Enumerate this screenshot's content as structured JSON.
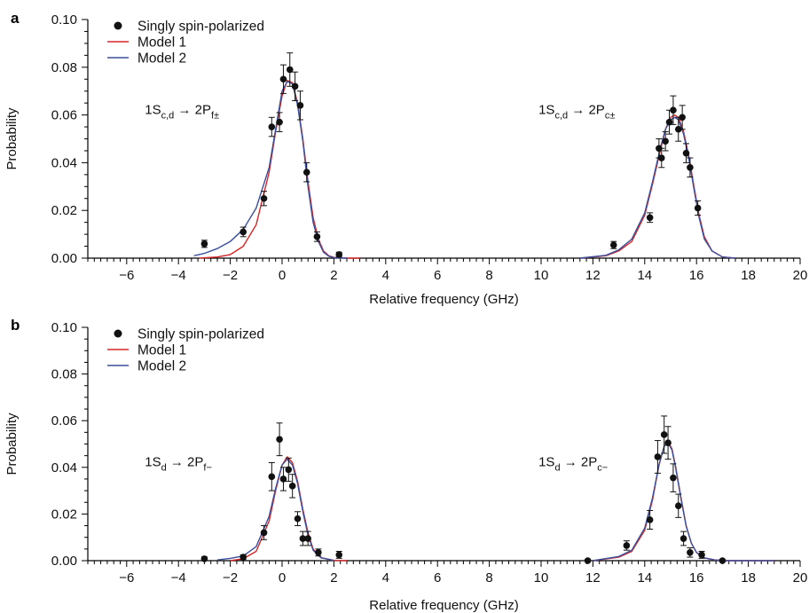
{
  "colors": {
    "model1": "#d62728",
    "model2": "#3b4f9c",
    "data": "#111111",
    "axis": "#000000"
  },
  "chart_data": [
    {
      "type": "scatter",
      "panel_label": "a",
      "xlabel": "Relative frequency (GHz)",
      "ylabel": "Probability",
      "xlim": [
        -7.5,
        20
      ],
      "ylim": [
        0,
        0.1
      ],
      "x_ticks": [
        -6,
        -4,
        -2,
        0,
        2,
        4,
        6,
        8,
        10,
        12,
        14,
        16,
        18,
        20
      ],
      "y_ticks": [
        0.0,
        0.02,
        0.04,
        0.06,
        0.08,
        0.1
      ],
      "y_tick_labels": [
        "0.00",
        "0.02",
        "0.04",
        "0.06",
        "0.08",
        "0.10"
      ],
      "legend": {
        "position": "top-left",
        "entries": [
          "Singly spin-polarized",
          "Model 1",
          "Model 2"
        ]
      },
      "annotations": [
        {
          "base": "1S",
          "sub1": "c,d",
          "arrow": " → 2P",
          "sub2": "f±",
          "at_x": -5.3,
          "at_y": 0.0605
        },
        {
          "base": "1S",
          "sub1": "c,d",
          "arrow": " → 2P",
          "sub2": "c±",
          "at_x": 9.9,
          "at_y": 0.0605
        }
      ],
      "series": [
        {
          "name": "Singly spin-polarized",
          "kind": "points",
          "x": [
            -3.0,
            -1.5,
            -0.7,
            -0.4,
            -0.1,
            0.05,
            0.3,
            0.5,
            0.7,
            0.95,
            1.35,
            2.2,
            12.8,
            14.2,
            14.55,
            14.65,
            14.8,
            14.95,
            15.1,
            15.3,
            15.45,
            15.6,
            15.75,
            16.05
          ],
          "y": [
            0.006,
            0.011,
            0.025,
            0.055,
            0.057,
            0.075,
            0.079,
            0.072,
            0.064,
            0.036,
            0.009,
            0.0015,
            0.0055,
            0.017,
            0.046,
            0.042,
            0.049,
            0.057,
            0.062,
            0.054,
            0.059,
            0.044,
            0.038,
            0.021
          ],
          "err": [
            0.0015,
            0.002,
            0.003,
            0.004,
            0.004,
            0.006,
            0.007,
            0.006,
            0.006,
            0.004,
            0.002,
            0.001,
            0.0015,
            0.002,
            0.004,
            0.004,
            0.004,
            0.005,
            0.006,
            0.005,
            0.005,
            0.004,
            0.004,
            0.003
          ]
        },
        {
          "name": "Model 1",
          "kind": "line",
          "x": [
            -3.2,
            -2.5,
            -2.0,
            -1.5,
            -1.0,
            -0.5,
            -0.25,
            0.0,
            0.2,
            0.4,
            0.6,
            0.8,
            1.0,
            1.2,
            1.4,
            1.6,
            1.8,
            2.0,
            2.5,
            3.0,
            11.5,
            12.5,
            13.0,
            13.5,
            14.0,
            14.3,
            14.6,
            14.8,
            15.0,
            15.15,
            15.3,
            15.5,
            15.7,
            15.9,
            16.1,
            16.3,
            16.6,
            17.0,
            17.5
          ],
          "y": [
            0.0,
            0.0005,
            0.0015,
            0.005,
            0.014,
            0.036,
            0.053,
            0.068,
            0.0745,
            0.0735,
            0.065,
            0.05,
            0.032,
            0.017,
            0.008,
            0.003,
            0.001,
            0.0003,
            0.0,
            0.0,
            0.0,
            0.001,
            0.003,
            0.007,
            0.018,
            0.031,
            0.045,
            0.054,
            0.059,
            0.06,
            0.059,
            0.053,
            0.043,
            0.03,
            0.018,
            0.009,
            0.003,
            0.0005,
            0.0
          ]
        },
        {
          "name": "Model 2",
          "kind": "line",
          "x": [
            -3.4,
            -3.0,
            -2.5,
            -2.0,
            -1.5,
            -1.0,
            -0.5,
            -0.25,
            0.0,
            0.2,
            0.4,
            0.6,
            0.8,
            1.0,
            1.2,
            1.4,
            1.6,
            1.8,
            2.0,
            2.5,
            11.5,
            12.5,
            13.0,
            13.5,
            14.0,
            14.3,
            14.6,
            14.8,
            15.0,
            15.15,
            15.3,
            15.5,
            15.7,
            15.9,
            16.1,
            16.3,
            16.6,
            17.0,
            17.5
          ],
          "y": [
            0.001,
            0.002,
            0.004,
            0.007,
            0.012,
            0.021,
            0.038,
            0.054,
            0.07,
            0.074,
            0.073,
            0.064,
            0.049,
            0.03,
            0.015,
            0.007,
            0.0025,
            0.0008,
            0.0002,
            0.0,
            0.0,
            0.0012,
            0.0035,
            0.008,
            0.019,
            0.032,
            0.046,
            0.054,
            0.058,
            0.059,
            0.058,
            0.052,
            0.042,
            0.029,
            0.017,
            0.008,
            0.003,
            0.0005,
            0.0
          ]
        }
      ]
    },
    {
      "type": "scatter",
      "panel_label": "b",
      "xlabel": "Relative frequency (GHz)",
      "ylabel": "Probability",
      "xlim": [
        -7.5,
        20
      ],
      "ylim": [
        0,
        0.1
      ],
      "x_ticks": [
        -6,
        -4,
        -2,
        0,
        2,
        4,
        6,
        8,
        10,
        12,
        14,
        16,
        18,
        20
      ],
      "y_ticks": [
        0.0,
        0.02,
        0.04,
        0.06,
        0.08,
        0.1
      ],
      "y_tick_labels": [
        "0.00",
        "0.02",
        "0.04",
        "0.06",
        "0.08",
        "0.10"
      ],
      "legend": {
        "position": "top-left",
        "entries": [
          "Singly spin-polarized",
          "Model 1",
          "Model 2"
        ]
      },
      "annotations": [
        {
          "base": "1S",
          "sub1": "d",
          "arrow": " → 2P",
          "sub2": "f−",
          "at_x": -5.3,
          "at_y": 0.0405
        },
        {
          "base": "1S",
          "sub1": "d",
          "arrow": " → 2P",
          "sub2": "c−",
          "at_x": 9.9,
          "at_y": 0.0405
        }
      ],
      "series": [
        {
          "name": "Singly spin-polarized",
          "kind": "points",
          "x": [
            -3.0,
            -1.5,
            -0.7,
            -0.4,
            -0.1,
            0.05,
            0.25,
            0.4,
            0.6,
            0.8,
            1.0,
            1.4,
            2.2,
            11.8,
            13.3,
            14.2,
            14.5,
            14.75,
            14.9,
            15.1,
            15.3,
            15.5,
            15.75,
            16.2,
            17.0
          ],
          "y": [
            0.0008,
            0.0015,
            0.012,
            0.036,
            0.052,
            0.035,
            0.039,
            0.032,
            0.018,
            0.0095,
            0.0095,
            0.0035,
            0.0025,
            0.0,
            0.0065,
            0.0175,
            0.0445,
            0.054,
            0.0505,
            0.0355,
            0.0235,
            0.0095,
            0.0035,
            0.0025,
            0.0
          ],
          "err": [
            0.0008,
            0.001,
            0.003,
            0.006,
            0.007,
            0.005,
            0.005,
            0.005,
            0.003,
            0.003,
            0.003,
            0.0015,
            0.0015,
            0.0005,
            0.002,
            0.004,
            0.007,
            0.008,
            0.007,
            0.006,
            0.005,
            0.003,
            0.002,
            0.0015,
            0.0005
          ]
        },
        {
          "name": "Model 1",
          "kind": "line",
          "x": [
            -2.0,
            -1.5,
            -1.0,
            -0.5,
            -0.25,
            0.0,
            0.2,
            0.4,
            0.6,
            0.8,
            1.0,
            1.2,
            1.5,
            2.0,
            2.5,
            12.0,
            13.0,
            13.5,
            14.0,
            14.3,
            14.55,
            14.75,
            14.9,
            15.05,
            15.2,
            15.4,
            15.6,
            15.8,
            16.0,
            16.3,
            16.7,
            17.2,
            18.0,
            19.0
          ],
          "y": [
            0.0,
            0.0008,
            0.004,
            0.017,
            0.03,
            0.041,
            0.0445,
            0.042,
            0.034,
            0.022,
            0.012,
            0.005,
            0.0013,
            0.0001,
            0.0,
            0.0,
            0.0015,
            0.004,
            0.013,
            0.026,
            0.041,
            0.049,
            0.051,
            0.048,
            0.04,
            0.027,
            0.015,
            0.0075,
            0.0035,
            0.0012,
            0.0003,
            0.0,
            0.0,
            0.0
          ]
        },
        {
          "name": "Model 2",
          "kind": "line",
          "x": [
            -2.5,
            -2.0,
            -1.5,
            -1.0,
            -0.5,
            -0.25,
            0.0,
            0.2,
            0.4,
            0.6,
            0.8,
            1.0,
            1.2,
            1.5,
            2.0,
            12.0,
            13.0,
            13.5,
            14.0,
            14.3,
            14.55,
            14.75,
            14.9,
            15.05,
            15.2,
            15.4,
            15.6,
            15.8,
            16.0,
            16.3,
            16.7,
            17.2,
            18.0,
            19.0
          ],
          "y": [
            0.0003,
            0.001,
            0.002,
            0.006,
            0.019,
            0.031,
            0.041,
            0.0435,
            0.041,
            0.033,
            0.021,
            0.011,
            0.0045,
            0.0012,
            0.0001,
            0.0,
            0.0018,
            0.0045,
            0.014,
            0.027,
            0.041,
            0.049,
            0.0505,
            0.0475,
            0.0395,
            0.0265,
            0.0148,
            0.0075,
            0.0035,
            0.0012,
            0.0003,
            0.0,
            0.0,
            0.0
          ]
        }
      ]
    }
  ]
}
